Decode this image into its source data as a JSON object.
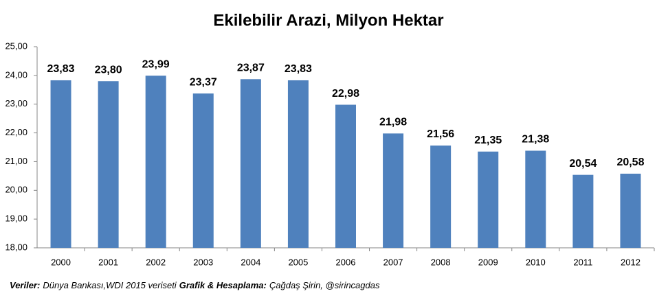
{
  "chart_data": {
    "type": "bar",
    "title": "Ekilebilir Arazi, Milyon Hektar",
    "categories": [
      "2000",
      "2001",
      "2002",
      "2003",
      "2004",
      "2005",
      "2006",
      "2007",
      "2008",
      "2009",
      "2010",
      "2011",
      "2012"
    ],
    "values": [
      23.83,
      23.8,
      23.99,
      23.37,
      23.87,
      23.83,
      22.98,
      21.98,
      21.56,
      21.35,
      21.38,
      20.54,
      20.58
    ],
    "value_labels": [
      "23,83",
      "23,80",
      "23,99",
      "23,37",
      "23,87",
      "23,83",
      "22,98",
      "21,98",
      "21,56",
      "21,35",
      "21,38",
      "20,54",
      "20,58"
    ],
    "color": "#4f81bd",
    "ylim": [
      18,
      25
    ],
    "yticks": [
      {
        "value": 18,
        "label": "18,00"
      },
      {
        "value": 19,
        "label": "19,00"
      },
      {
        "value": 20,
        "label": "20,00"
      },
      {
        "value": 21,
        "label": "21,00"
      },
      {
        "value": 22,
        "label": "22,00"
      },
      {
        "value": 23,
        "label": "23,00"
      },
      {
        "value": 24,
        "label": "24,00"
      },
      {
        "value": 25,
        "label": "25,00"
      }
    ],
    "grid": false,
    "footnote": [
      {
        "text": "Veriler:",
        "bold": true
      },
      {
        "text": "Dünya Bankası,WDI 2015 veriseti",
        "bold": false
      },
      {
        "text": "Grafik & Hesaplama:",
        "bold": true
      },
      {
        "text": "Çağdaş Şirin, @sirincagdas",
        "bold": false
      }
    ]
  }
}
